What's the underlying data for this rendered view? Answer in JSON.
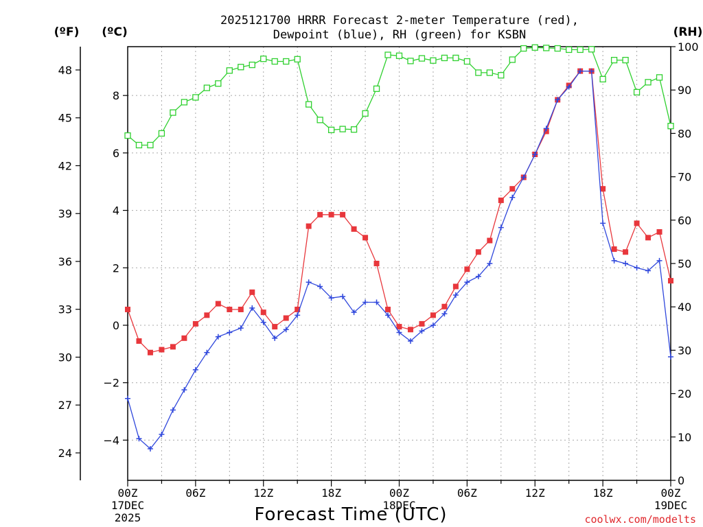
{
  "chart_data": {
    "type": "line",
    "title_line1": "2025121700 HRRR Forecast 2-meter Temperature (red),",
    "title_line2": "Dewpoint (blue), RH (green) for KSBN",
    "unit_left_outer": "(ºF)",
    "unit_left_inner": "(ºC)",
    "unit_right": "(RH)",
    "xlabel": "Forecast Time (UTC)",
    "credit": "coolwx.com/modelts",
    "x_range": [
      0,
      48
    ],
    "c_range": [
      -5.4,
      9.7
    ],
    "rh_range": [
      0,
      100
    ],
    "c_ticks": [
      {
        "value": -4,
        "label": "−4"
      },
      {
        "value": -2,
        "label": "−2"
      },
      {
        "value": 0,
        "label": "0"
      },
      {
        "value": 2,
        "label": "2"
      },
      {
        "value": 4,
        "label": "4"
      },
      {
        "value": 6,
        "label": "6"
      },
      {
        "value": 8,
        "label": "8"
      }
    ],
    "f_ticks": [
      24,
      27,
      30,
      33,
      36,
      39,
      42,
      45,
      48
    ],
    "rh_ticks": [
      0,
      10,
      20,
      30,
      40,
      50,
      60,
      70,
      80,
      90,
      100
    ],
    "x_ticks": [
      {
        "hour": 0,
        "label": "00Z",
        "date": "17DEC",
        "year": "2025"
      },
      {
        "hour": 6,
        "label": "06Z"
      },
      {
        "hour": 12,
        "label": "12Z"
      },
      {
        "hour": 18,
        "label": "18Z"
      },
      {
        "hour": 24,
        "label": "00Z",
        "date": "18DEC"
      },
      {
        "hour": 30,
        "label": "06Z"
      },
      {
        "hour": 36,
        "label": "12Z"
      },
      {
        "hour": 42,
        "label": "18Z"
      },
      {
        "hour": 48,
        "label": "00Z",
        "date": "19DEC"
      }
    ],
    "series": [
      {
        "name": "Temperature",
        "unit": "C",
        "axis": "left",
        "color": "#e8373c",
        "marker": "filled-square",
        "values": [
          0.55,
          -0.55,
          -0.95,
          -0.85,
          -0.75,
          -0.45,
          0.05,
          0.35,
          0.75,
          0.55,
          0.55,
          1.15,
          0.45,
          -0.05,
          0.25,
          0.55,
          3.45,
          3.85,
          3.85,
          3.85,
          3.35,
          3.05,
          2.15,
          0.55,
          -0.05,
          -0.15,
          0.05,
          0.35,
          0.65,
          1.35,
          1.95,
          2.55,
          2.95,
          4.35,
          4.75,
          5.15,
          5.95,
          6.75,
          7.85,
          8.35,
          8.85,
          8.85,
          4.75,
          2.65,
          2.55,
          3.55,
          3.05,
          3.25,
          1.55
        ]
      },
      {
        "name": "Dewpoint",
        "unit": "C",
        "axis": "left",
        "color": "#2f47dc",
        "marker": "plus",
        "values": [
          -2.55,
          -3.95,
          -4.3,
          -3.8,
          -2.95,
          -2.25,
          -1.55,
          -0.95,
          -0.4,
          -0.25,
          -0.1,
          0.6,
          0.1,
          -0.45,
          -0.15,
          0.35,
          1.5,
          1.35,
          0.95,
          1.0,
          0.45,
          0.8,
          0.8,
          0.35,
          -0.25,
          -0.55,
          -0.2,
          0.0,
          0.4,
          1.05,
          1.5,
          1.7,
          2.15,
          3.4,
          4.45,
          5.15,
          5.95,
          6.85,
          7.85,
          8.3,
          8.85,
          8.85,
          3.55,
          2.25,
          2.15,
          2.0,
          1.9,
          2.25,
          -1.1
        ]
      },
      {
        "name": "RH",
        "unit": "%",
        "axis": "right",
        "color": "#2fd02f",
        "marker": "open-square",
        "values": [
          79.5,
          77.3,
          77.3,
          80.0,
          84.8,
          87.2,
          88.3,
          90.5,
          91.5,
          94.5,
          95.3,
          95.8,
          97.2,
          96.6,
          96.6,
          97.1,
          86.7,
          83.1,
          80.8,
          81.0,
          80.9,
          84.6,
          90.3,
          98.1,
          97.9,
          96.7,
          97.3,
          96.8,
          97.4,
          97.4,
          96.6,
          94.0,
          94.0,
          93.4,
          97.0,
          99.6,
          99.8,
          99.7,
          99.6,
          99.3,
          99.3,
          99.4,
          92.5,
          96.9,
          96.9,
          89.5,
          91.8,
          92.9,
          81.7
        ]
      }
    ]
  }
}
